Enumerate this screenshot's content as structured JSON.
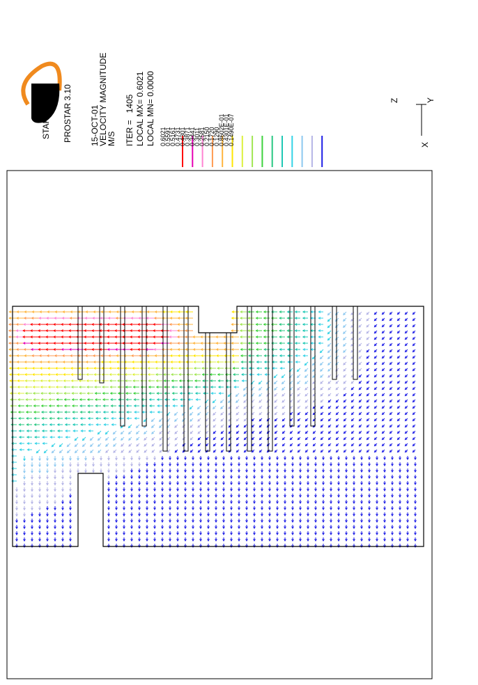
{
  "logo": "STAR",
  "program": "PROSTAR 3.10",
  "date": "15-OCT-01",
  "quantity": "VELOCITY MAGNITUDE",
  "units": "M/S",
  "iteration": "ITER =   1405",
  "local_max": "LOCAL MX= 0.6021",
  "local_min": "LOCAL MN= 0.0000",
  "legend": [
    {
      "label": "0.6021",
      "color": "#ff0000"
    },
    {
      "label": "0.5591",
      "color": "#e600b4"
    },
    {
      "label": "0.5161",
      "color": "#ff82d2"
    },
    {
      "label": "0.4731",
      "color": "#ff9a50"
    },
    {
      "label": "0.4301",
      "color": "#ffb43c"
    },
    {
      "label": "0.3871",
      "color": "#ffe600"
    },
    {
      "label": "0.3441",
      "color": "#dcf03c"
    },
    {
      "label": "0.3011",
      "color": "#a0e650"
    },
    {
      "label": "0.2581",
      "color": "#3cd23c"
    },
    {
      "label": "0.2150",
      "color": "#28c882"
    },
    {
      "label": "0.1720",
      "color": "#1ec8b4"
    },
    {
      "label": "0.1290",
      "color": "#32d2e6"
    },
    {
      "label": "0.8602E-01",
      "color": "#8cc8f0"
    },
    {
      "label": "0.4301E-01",
      "color": "#b4b4e6"
    },
    {
      "label": "0.1490E-07",
      "color": "#1e1ee6"
    }
  ],
  "axes": {
    "z": "Z",
    "y": "Y",
    "x": "X"
  }
}
